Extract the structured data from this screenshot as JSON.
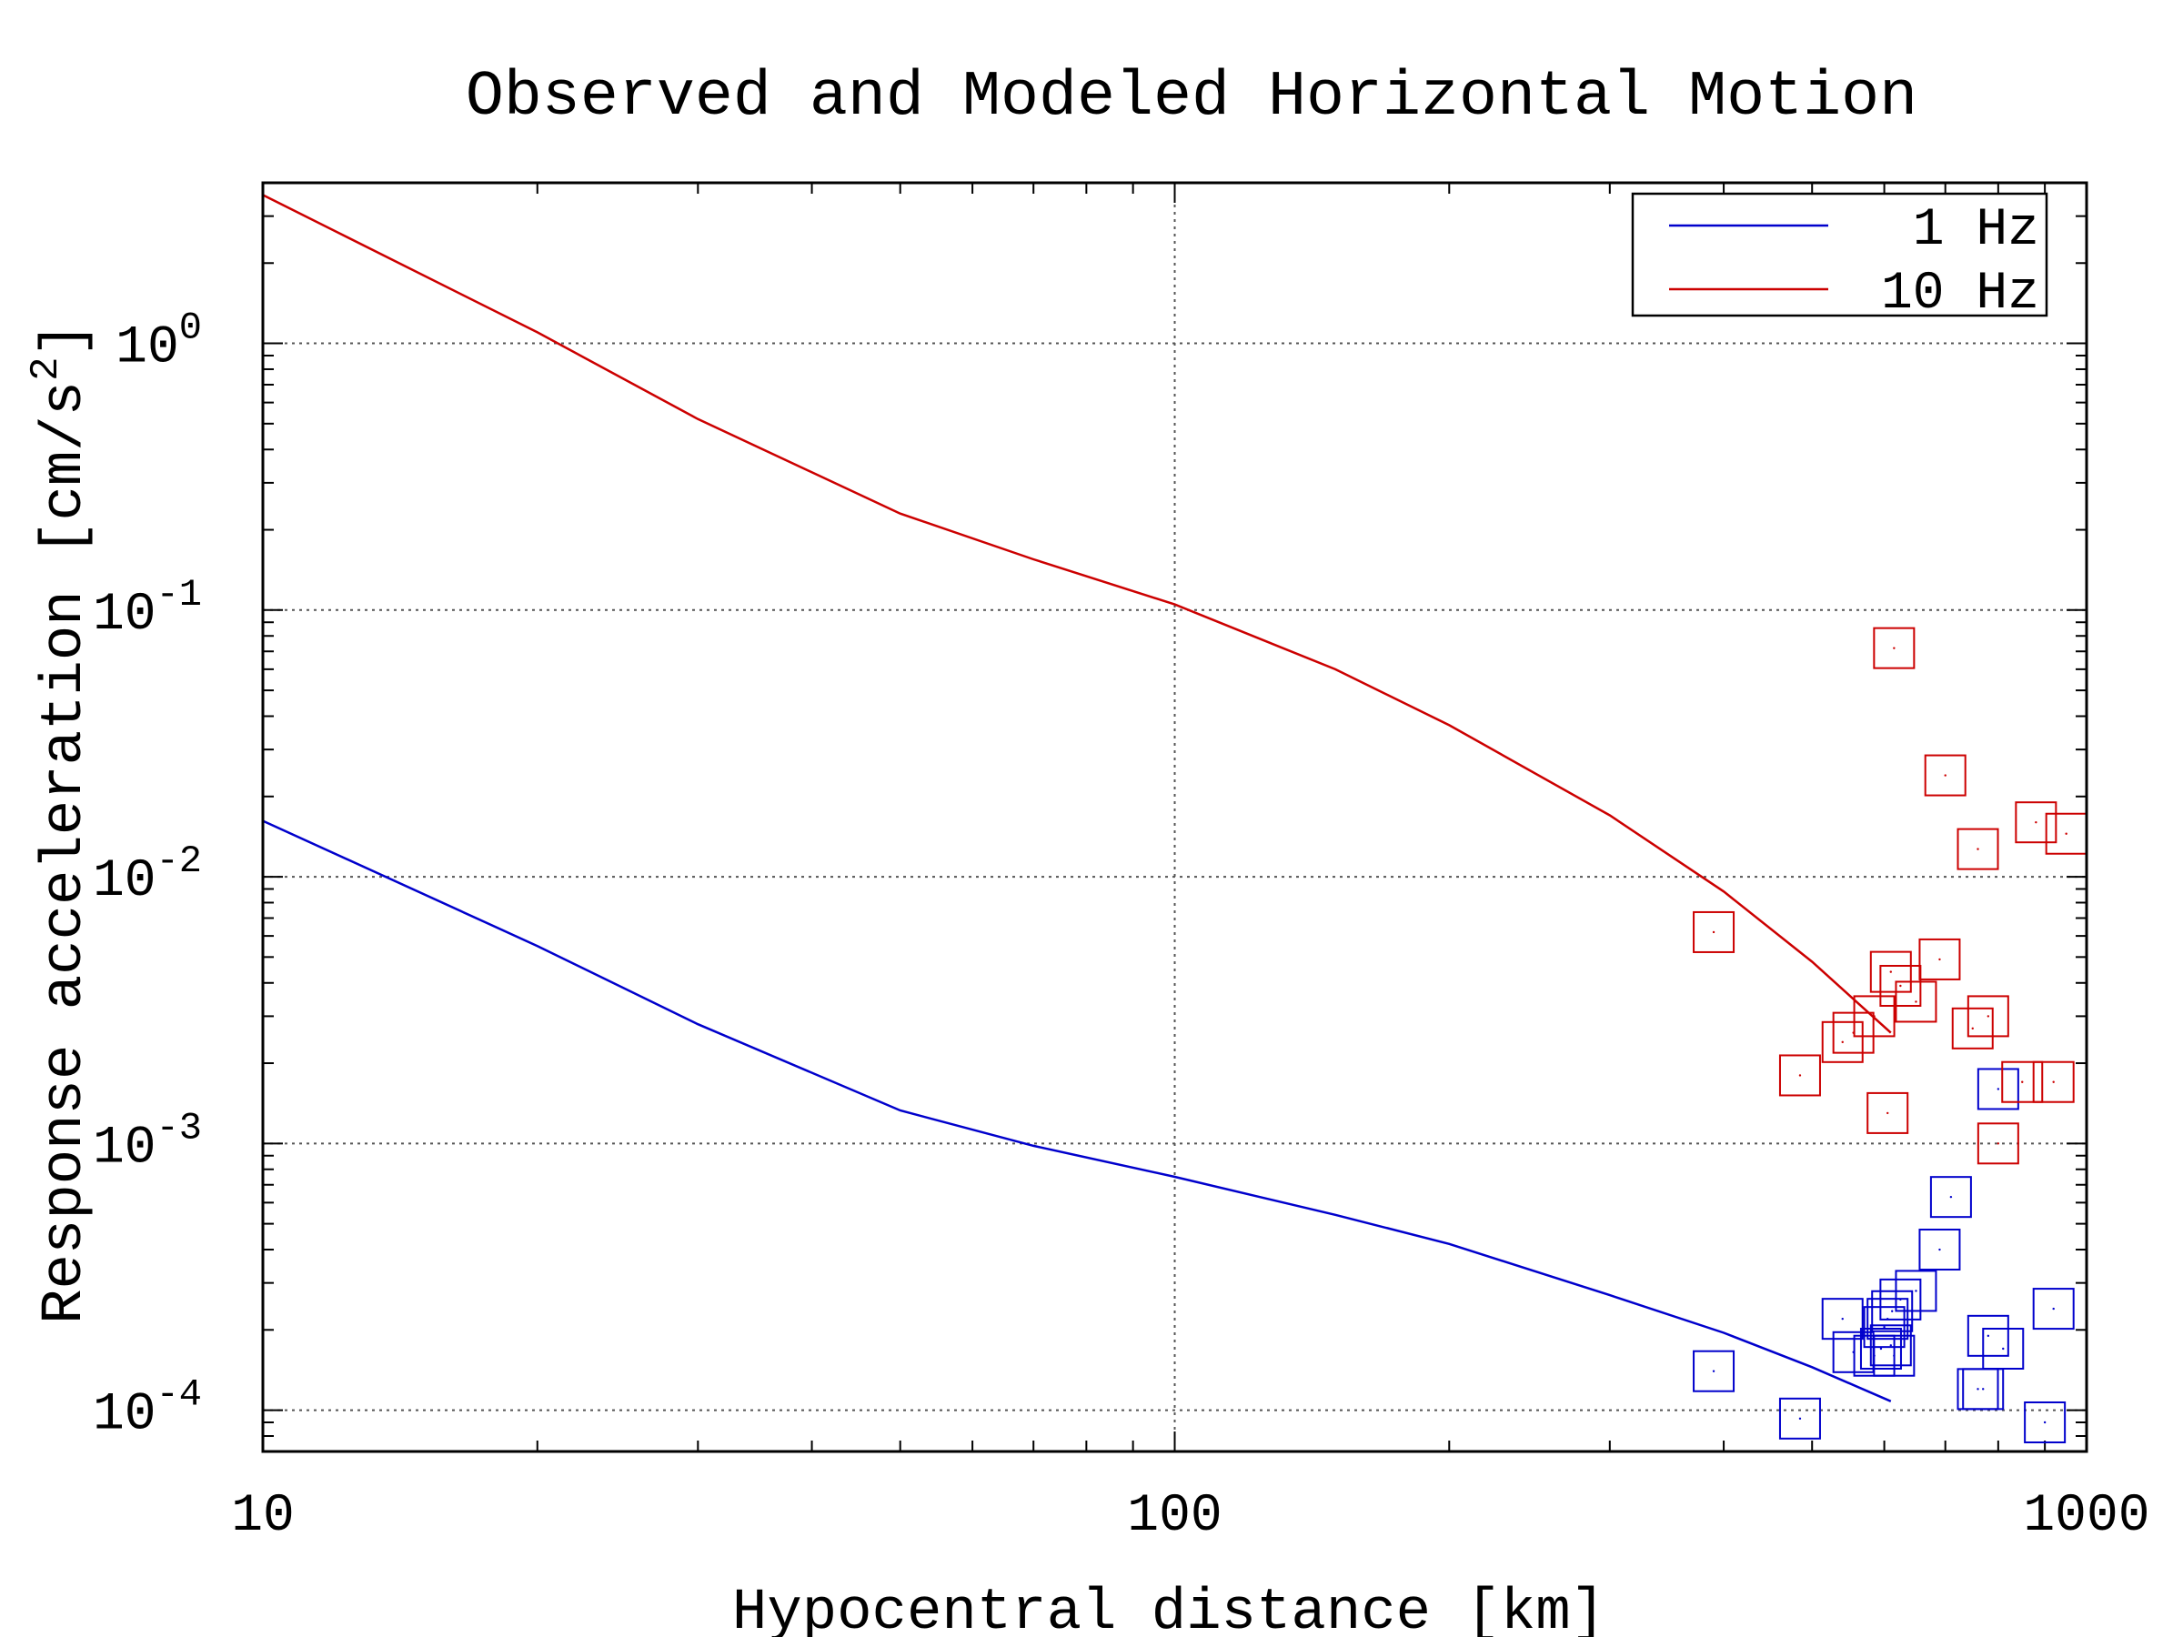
{
  "chart_data": {
    "type": "line",
    "title": "Observed and Modeled Horizontal Motion",
    "xlabel": "Hypocentral distance [km]",
    "ylabel_main": "Response acceleration [cm/s",
    "ylabel_sup": "2",
    "ylabel_tail": "]",
    "xscale": "log",
    "yscale": "log",
    "xlim": [
      10,
      1000
    ],
    "ylim": [
      7e-05,
      4.0
    ],
    "grid": true,
    "legend_position": "top-right",
    "x_ticks": [
      {
        "value": 10,
        "label": "10"
      },
      {
        "value": 100,
        "label": "100"
      },
      {
        "value": 1000,
        "label": "1000"
      }
    ],
    "y_ticks": [
      {
        "value": 1,
        "base": "10",
        "exp": "0"
      },
      {
        "value": 0.1,
        "base": "10",
        "exp": "-1"
      },
      {
        "value": 0.01,
        "base": "10",
        "exp": "-2"
      },
      {
        "value": 0.001,
        "base": "10",
        "exp": "-3"
      },
      {
        "value": 0.0001,
        "base": "10",
        "exp": "-4"
      }
    ],
    "series": [
      {
        "name": "1 Hz",
        "color": "#0000cc",
        "line": {
          "x": [
            10,
            20,
            30,
            50,
            70,
            100,
            150,
            200,
            300,
            400,
            500,
            610
          ],
          "y": [
            0.0162,
            0.0055,
            0.0028,
            0.00133,
            0.00098,
            0.00075,
            0.00054,
            0.00042,
            0.00027,
            0.000195,
            0.000145,
            0.000108
          ]
        },
        "observed": {
          "x": [
            390,
            485,
            540,
            555,
            585,
            595,
            600,
            605,
            610,
            612,
            615,
            625,
            650,
            690,
            710,
            760,
            770,
            780,
            800,
            810,
            900,
            920
          ],
          "y": [
            0.00014,
            9.3e-05,
            0.00022,
            0.000165,
            0.00016,
            0.00017,
            0.000205,
            0.00022,
            0.000175,
            0.000235,
            0.00016,
            0.00026,
            0.00028,
            0.0004,
            0.00063,
            0.00012,
            0.00012,
            0.00019,
            0.0016,
            0.00017,
            9e-05,
            0.00024
          ]
        }
      },
      {
        "name": "10 Hz",
        "color": "#cc0000",
        "line": {
          "x": [
            10,
            20,
            30,
            50,
            70,
            100,
            150,
            200,
            300,
            400,
            500,
            610
          ],
          "y": [
            3.6,
            1.1,
            0.52,
            0.23,
            0.155,
            0.105,
            0.06,
            0.037,
            0.017,
            0.0088,
            0.0048,
            0.0026
          ]
        },
        "observed": {
          "x": [
            390,
            485,
            540,
            555,
            585,
            605,
            610,
            615,
            625,
            650,
            690,
            700,
            750,
            760,
            780,
            800,
            850,
            880,
            920,
            950
          ],
          "y": [
            0.0062,
            0.0018,
            0.0024,
            0.0026,
            0.003,
            0.0013,
            0.0044,
            0.072,
            0.0039,
            0.0034,
            0.0049,
            0.024,
            0.0027,
            0.0127,
            0.003,
            0.001,
            0.0017,
            0.016,
            0.0017,
            0.0145
          ]
        }
      }
    ]
  }
}
